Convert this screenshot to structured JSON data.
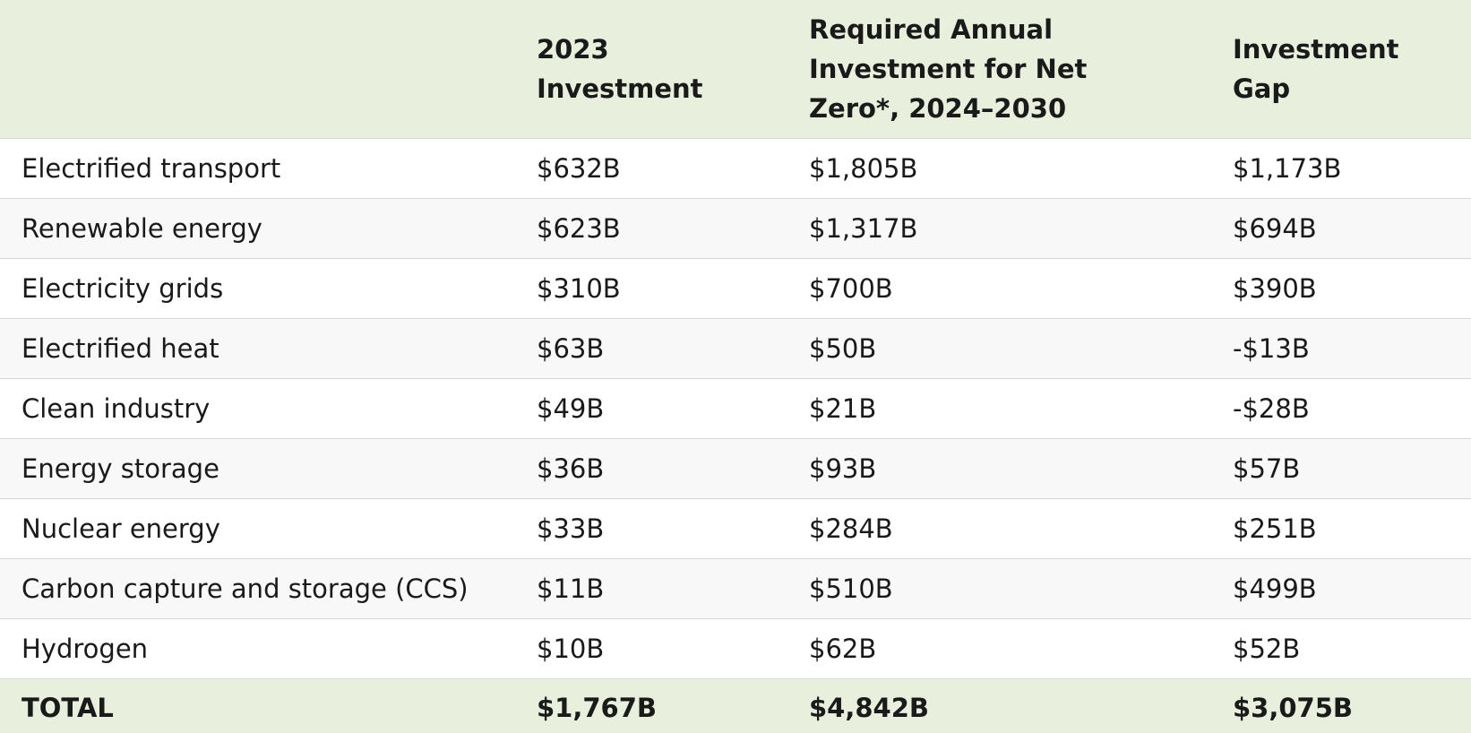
{
  "table": {
    "headers": [
      "",
      "2023 Investment",
      "Required Annual Investment for Net Zero*, 2024–2030",
      "Investment Gap"
    ],
    "rows": [
      {
        "sector": "Electrified transport",
        "investment_2023": "$632B",
        "required_annual": "$1,805B",
        "gap": "$1,173B"
      },
      {
        "sector": "Renewable energy",
        "investment_2023": "$623B",
        "required_annual": "$1,317B",
        "gap": "$694B"
      },
      {
        "sector": "Electricity grids",
        "investment_2023": "$310B",
        "required_annual": "$700B",
        "gap": "$390B"
      },
      {
        "sector": "Electrified heat",
        "investment_2023": "$63B",
        "required_annual": "$50B",
        "gap": "-$13B"
      },
      {
        "sector": "Clean industry",
        "investment_2023": "$49B",
        "required_annual": "$21B",
        "gap": "-$28B"
      },
      {
        "sector": "Energy storage",
        "investment_2023": "$36B",
        "required_annual": "$93B",
        "gap": "$57B"
      },
      {
        "sector": "Nuclear energy",
        "investment_2023": "$33B",
        "required_annual": "$284B",
        "gap": "$251B"
      },
      {
        "sector": "Carbon capture and storage (CCS)",
        "investment_2023": "$11B",
        "required_annual": "$510B",
        "gap": "$499B"
      },
      {
        "sector": "Hydrogen",
        "investment_2023": "$10B",
        "required_annual": "$62B",
        "gap": "$52B"
      }
    ],
    "total": {
      "label": "TOTAL",
      "investment_2023": "$1,767B",
      "required_annual": "$4,842B",
      "gap": "$3,075B"
    }
  },
  "colors": {
    "header_background": "#e8efdc",
    "row_alt_background": "#f8f8f8",
    "border": "#d6d6d6"
  }
}
